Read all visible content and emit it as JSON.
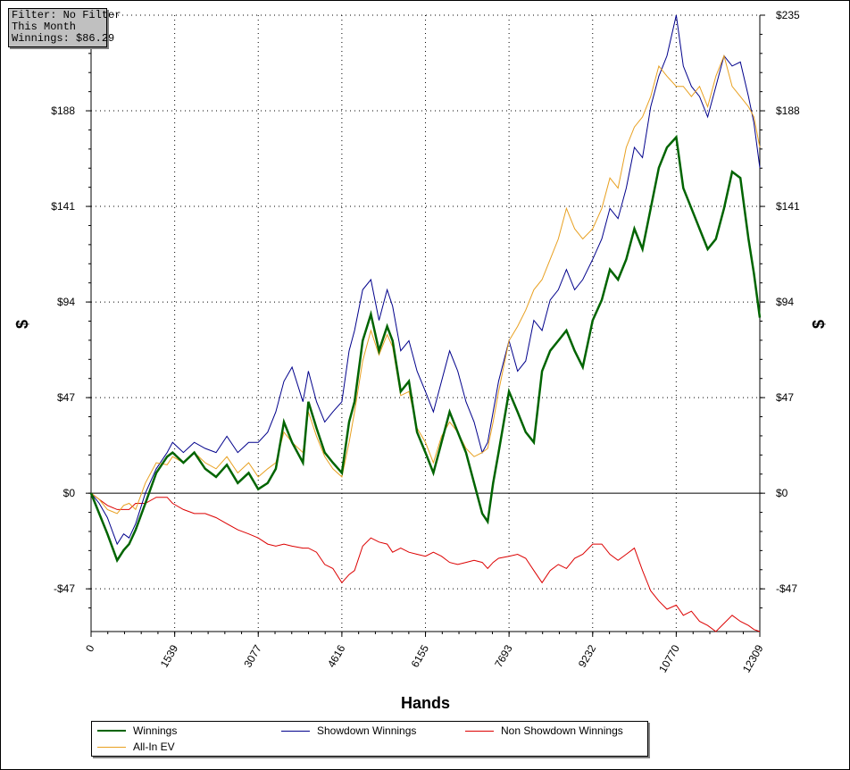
{
  "info_box": {
    "line1": "Filter: No Filter",
    "line2": "This Month",
    "line3": "Winnings: $86.29"
  },
  "chart_data": {
    "type": "line",
    "title": "",
    "xlabel": "Hands",
    "ylabel": "$",
    "xlim": [
      0,
      12309
    ],
    "ylim": [
      -68,
      235
    ],
    "x_ticks": [
      0,
      1539,
      3077,
      4616,
      6155,
      7693,
      9232,
      10770,
      12309
    ],
    "x_tick_labels": [
      "0",
      "1539",
      "3077",
      "4616",
      "6155",
      "7693",
      "9232",
      "10770",
      "12309"
    ],
    "y_ticks": [
      -47,
      0,
      47,
      94,
      141,
      188,
      235
    ],
    "y_tick_labels": [
      "-$47",
      "$0",
      "$47",
      "$94",
      "$141",
      "$188",
      "$235"
    ],
    "grid": true,
    "legend_position": "bottom",
    "series": [
      {
        "name": "Winnings",
        "color": "#006400",
        "x": [
          0,
          150,
          300,
          480,
          600,
          700,
          820,
          1000,
          1200,
          1400,
          1500,
          1700,
          1900,
          2100,
          2300,
          2500,
          2700,
          2900,
          3077,
          3250,
          3400,
          3550,
          3700,
          3900,
          4000,
          4150,
          4300,
          4450,
          4616,
          4750,
          4850,
          5000,
          5150,
          5300,
          5450,
          5550,
          5700,
          5850,
          6000,
          6155,
          6300,
          6450,
          6600,
          6750,
          6900,
          7050,
          7200,
          7300,
          7400,
          7500,
          7693,
          7850,
          8000,
          8150,
          8300,
          8450,
          8600,
          8750,
          8900,
          9050,
          9232,
          9400,
          9550,
          9700,
          9850,
          10000,
          10150,
          10300,
          10450,
          10600,
          10770,
          10900,
          11050,
          11200,
          11350,
          11500,
          11650,
          11800,
          11950,
          12100,
          12200,
          12309
        ],
        "values": [
          0,
          -10,
          -20,
          -33,
          -28,
          -25,
          -18,
          -5,
          10,
          18,
          20,
          15,
          20,
          12,
          8,
          14,
          5,
          10,
          2,
          5,
          12,
          35,
          25,
          15,
          45,
          32,
          20,
          15,
          10,
          35,
          45,
          75,
          88,
          70,
          82,
          75,
          50,
          55,
          30,
          20,
          10,
          25,
          40,
          30,
          20,
          5,
          -10,
          -14,
          5,
          20,
          50,
          40,
          30,
          25,
          60,
          70,
          75,
          80,
          70,
          62,
          85,
          95,
          110,
          105,
          115,
          130,
          120,
          140,
          160,
          170,
          175,
          150,
          140,
          130,
          120,
          125,
          140,
          158,
          155,
          125,
          108,
          86.29
        ]
      },
      {
        "name": "Showdown Winnings",
        "color": "#00008b",
        "x": [
          0,
          150,
          300,
          480,
          600,
          700,
          820,
          1000,
          1200,
          1400,
          1500,
          1700,
          1900,
          2100,
          2300,
          2500,
          2700,
          2900,
          3077,
          3250,
          3400,
          3550,
          3700,
          3900,
          4000,
          4150,
          4300,
          4450,
          4616,
          4750,
          4850,
          5000,
          5150,
          5300,
          5450,
          5550,
          5700,
          5850,
          6000,
          6155,
          6300,
          6450,
          6600,
          6750,
          6900,
          7050,
          7200,
          7300,
          7400,
          7500,
          7693,
          7850,
          8000,
          8150,
          8300,
          8450,
          8600,
          8750,
          8900,
          9050,
          9232,
          9400,
          9550,
          9700,
          9850,
          10000,
          10150,
          10300,
          10450,
          10600,
          10770,
          10900,
          11050,
          11200,
          11350,
          11500,
          11650,
          11800,
          11950,
          12100,
          12200,
          12309
        ],
        "values": [
          0,
          -5,
          -12,
          -25,
          -20,
          -22,
          -15,
          0,
          12,
          20,
          25,
          20,
          25,
          22,
          20,
          28,
          20,
          25,
          25,
          30,
          40,
          55,
          62,
          45,
          60,
          45,
          35,
          40,
          45,
          70,
          80,
          100,
          105,
          85,
          100,
          92,
          70,
          75,
          60,
          50,
          40,
          55,
          70,
          60,
          45,
          35,
          20,
          25,
          40,
          55,
          75,
          60,
          65,
          85,
          80,
          95,
          100,
          110,
          100,
          105,
          115,
          125,
          140,
          135,
          150,
          170,
          165,
          190,
          205,
          215,
          235,
          210,
          200,
          195,
          185,
          200,
          215,
          210,
          212,
          195,
          182,
          160
        ]
      },
      {
        "name": "Non Showdown Winnings",
        "color": "#dc0000",
        "x": [
          0,
          150,
          300,
          480,
          600,
          700,
          820,
          1000,
          1200,
          1400,
          1500,
          1700,
          1900,
          2100,
          2300,
          2500,
          2700,
          2900,
          3077,
          3250,
          3400,
          3550,
          3700,
          3900,
          4000,
          4150,
          4300,
          4450,
          4616,
          4750,
          4850,
          5000,
          5150,
          5300,
          5450,
          5550,
          5700,
          5850,
          6000,
          6155,
          6300,
          6450,
          6600,
          6750,
          6900,
          7050,
          7200,
          7300,
          7400,
          7500,
          7693,
          7850,
          8000,
          8150,
          8300,
          8450,
          8600,
          8750,
          8900,
          9050,
          9232,
          9400,
          9550,
          9700,
          9850,
          10000,
          10150,
          10300,
          10450,
          10600,
          10770,
          10900,
          11050,
          11200,
          11350,
          11500,
          11650,
          11800,
          11950,
          12100,
          12200,
          12309
        ],
        "values": [
          0,
          -3,
          -6,
          -8,
          -8,
          -8,
          -5,
          -5,
          -2,
          -2,
          -5,
          -8,
          -10,
          -10,
          -12,
          -15,
          -18,
          -20,
          -22,
          -25,
          -26,
          -25,
          -26,
          -27,
          -27,
          -29,
          -35,
          -37,
          -44,
          -40,
          -38,
          -26,
          -22,
          -24,
          -25,
          -29,
          -27,
          -29,
          -30,
          -31,
          -29,
          -31,
          -34,
          -35,
          -34,
          -33,
          -34,
          -37,
          -34,
          -32,
          -31,
          -30,
          -32,
          -38,
          -44,
          -38,
          -35,
          -37,
          -32,
          -30,
          -25,
          -25,
          -30,
          -33,
          -30,
          -27,
          -38,
          -48,
          -53,
          -57,
          -55,
          -60,
          -58,
          -63,
          -65,
          -68,
          -64,
          -60,
          -63,
          -65,
          -67,
          -68
        ]
      },
      {
        "name": "All-In EV",
        "color": "#e8a020",
        "x": [
          0,
          150,
          300,
          480,
          600,
          700,
          820,
          1000,
          1200,
          1400,
          1500,
          1700,
          1900,
          2100,
          2300,
          2500,
          2700,
          2900,
          3077,
          3250,
          3400,
          3550,
          3700,
          3900,
          4000,
          4150,
          4300,
          4450,
          4616,
          4750,
          4850,
          5000,
          5150,
          5300,
          5450,
          5550,
          5700,
          5850,
          6000,
          6155,
          6300,
          6450,
          6600,
          6750,
          6900,
          7050,
          7200,
          7300,
          7400,
          7500,
          7693,
          7850,
          8000,
          8150,
          8300,
          8450,
          8600,
          8750,
          8900,
          9050,
          9232,
          9400,
          9550,
          9700,
          9850,
          10000,
          10150,
          10300,
          10450,
          10600,
          10770,
          10900,
          11050,
          11200,
          11350,
          11500,
          11650,
          11800,
          11950,
          12100,
          12200,
          12309
        ],
        "values": [
          0,
          -3,
          -8,
          -10,
          -6,
          -5,
          -8,
          5,
          15,
          14,
          18,
          15,
          20,
          15,
          12,
          18,
          10,
          15,
          8,
          12,
          15,
          30,
          25,
          20,
          40,
          28,
          18,
          12,
          8,
          25,
          40,
          65,
          80,
          68,
          78,
          72,
          48,
          50,
          32,
          25,
          15,
          28,
          35,
          30,
          22,
          18,
          20,
          22,
          35,
          50,
          75,
          82,
          90,
          100,
          105,
          115,
          125,
          140,
          130,
          125,
          130,
          140,
          155,
          150,
          170,
          180,
          185,
          195,
          210,
          205,
          200,
          200,
          195,
          200,
          190,
          205,
          215,
          200,
          195,
          190,
          185,
          170
        ]
      }
    ]
  }
}
